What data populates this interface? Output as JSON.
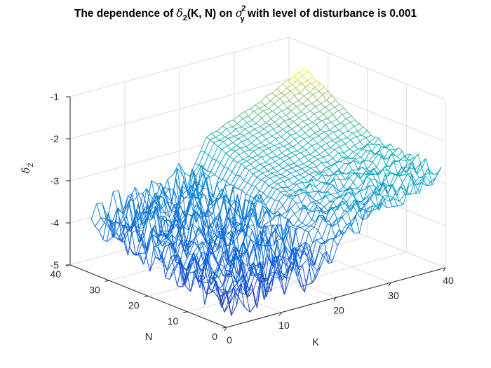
{
  "chart_data": {
    "type": "surface-mesh",
    "title": {
      "prefix": "The dependence of ",
      "delta": "δ",
      "delta_sub": "2",
      "args": "(K, N) on ",
      "sigma": "σ",
      "sigma_sup": "2",
      "sigma_sub": "y",
      "suffix": " with level of disturbance is 0.001"
    },
    "xlabel": "K",
    "ylabel": "N",
    "zlabel": {
      "symbol": "δ",
      "sub": "2"
    },
    "xlim": [
      0,
      40
    ],
    "ylim": [
      0,
      40
    ],
    "zlim": [
      -5,
      -1
    ],
    "xticks": [
      "0",
      "10",
      "20",
      "30",
      "40"
    ],
    "yticks": [
      "0",
      "10",
      "20",
      "30",
      "40"
    ],
    "zticks": [
      "-5",
      "-4",
      "-3",
      "-2",
      "-1"
    ],
    "grid": true,
    "colormap": "parula",
    "K_range": [
      1,
      40
    ],
    "N_range": [
      1,
      36
    ],
    "surface_description": "Noisy low values (about -4.5 to -3.5) for small K; rises sharply near K = 20 to about -2.6 at high N, then increases smoothly to about -1.6 at K = 40, with a noisy lower tail near -3.5 to -2.8 at small N.",
    "sample_profiles": [
      {
        "N": 36,
        "K": [
          1,
          10,
          19,
          22,
          30,
          40
        ],
        "delta2": [
          -3.8,
          -3.6,
          -3.4,
          -2.6,
          -2.2,
          -1.6
        ]
      },
      {
        "N": 18,
        "K": [
          1,
          10,
          19,
          22,
          30,
          40
        ],
        "delta2": [
          -4.2,
          -3.9,
          -3.6,
          -3.2,
          -3.0,
          -2.6
        ]
      },
      {
        "N": 1,
        "K": [
          1,
          10,
          19,
          22,
          30,
          40
        ],
        "delta2": [
          -4.6,
          -4.4,
          -4.3,
          -3.6,
          -3.2,
          -2.8
        ]
      }
    ]
  }
}
